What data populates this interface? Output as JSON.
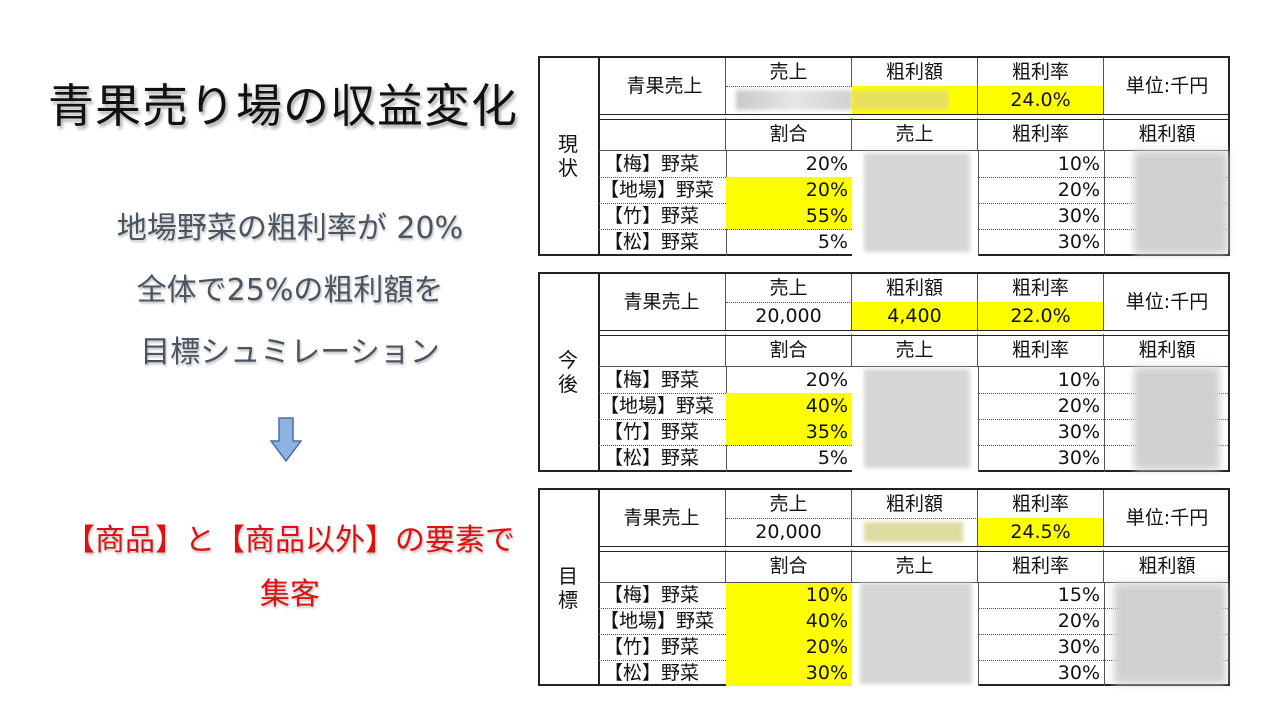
{
  "title": "青果売り場の収益変化",
  "description": [
    "地場野菜の粗利率が 20%",
    "全体で25%の粗利額を",
    "目標シュミレーション"
  ],
  "arrow_icon": "down-arrow-icon",
  "colors": {
    "highlight": "#ffff00",
    "arrow": "#8db3e2",
    "red_text": "#e01010"
  },
  "red_text": [
    "【商品】と【商品以外】の要素で",
    "集客"
  ],
  "tables": [
    {
      "side_label": [
        "現",
        "状"
      ],
      "header": {
        "label": "青果売上",
        "col_sales": "売上",
        "col_profit": "粗利額",
        "col_rate": "粗利率",
        "unit": "単位:千円",
        "sales": "",
        "profit": "",
        "rate": "24.0%"
      },
      "sub_header": {
        "share": "割合",
        "sales": "売上",
        "rate": "粗利率",
        "profit": "粗利額"
      },
      "rows": [
        {
          "name": "【梅】野菜",
          "share": "20%",
          "rate": "10%"
        },
        {
          "name": "【地場】野菜",
          "share": "20%",
          "rate": "20%"
        },
        {
          "name": "【竹】野菜",
          "share": "55%",
          "rate": "30%"
        },
        {
          "name": "【松】野菜",
          "share": "5%",
          "rate": "30%"
        }
      ]
    },
    {
      "side_label": [
        "今",
        "後"
      ],
      "header": {
        "label": "青果売上",
        "col_sales": "売上",
        "col_profit": "粗利額",
        "col_rate": "粗利率",
        "unit": "単位:千円",
        "sales": "20,000",
        "profit": "4,400",
        "rate": "22.0%"
      },
      "sub_header": {
        "share": "割合",
        "sales": "売上",
        "rate": "粗利率",
        "profit": "粗利額"
      },
      "rows": [
        {
          "name": "【梅】野菜",
          "share": "20%",
          "rate": "10%"
        },
        {
          "name": "【地場】野菜",
          "share": "40%",
          "rate": "20%"
        },
        {
          "name": "【竹】野菜",
          "share": "35%",
          "rate": "30%"
        },
        {
          "name": "【松】野菜",
          "share": "5%",
          "rate": "30%"
        }
      ]
    },
    {
      "side_label": [
        "目",
        "標"
      ],
      "header": {
        "label": "青果売上",
        "col_sales": "売上",
        "col_profit": "粗利額",
        "col_rate": "粗利率",
        "unit": "単位:千円",
        "sales": "20,000",
        "profit": "",
        "rate": "24.5%"
      },
      "sub_header": {
        "share": "割合",
        "sales": "売上",
        "rate": "粗利率",
        "profit": "粗利額"
      },
      "rows": [
        {
          "name": "【梅】野菜",
          "share": "10%",
          "rate": "15%"
        },
        {
          "name": "【地場】野菜",
          "share": "40%",
          "rate": "20%"
        },
        {
          "name": "【竹】野菜",
          "share": "20%",
          "rate": "30%"
        },
        {
          "name": "【松】野菜",
          "share": "30%",
          "rate": "30%"
        }
      ]
    }
  ]
}
